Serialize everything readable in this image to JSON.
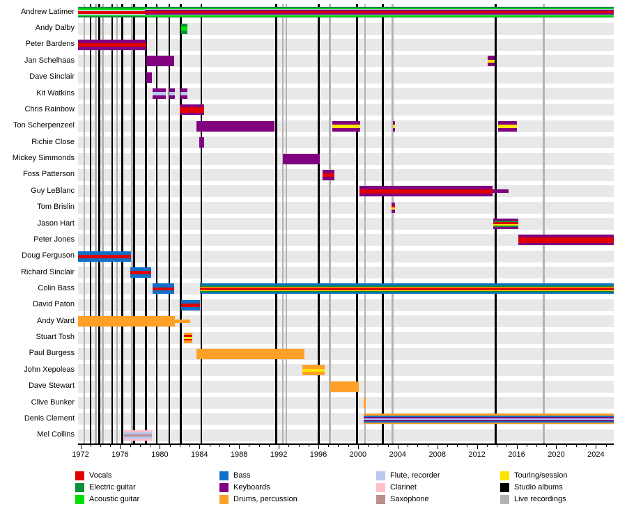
{
  "chart_data": {
    "type": "timeline",
    "x_axis": {
      "domain": [
        1971.75,
        2025.8
      ],
      "tick_start": 1972,
      "tick_end": 2025,
      "label_start": 1972,
      "label_end": 2024,
      "label_interval": 4,
      "tick_labels": [
        "1972",
        "1976",
        "1980",
        "1984",
        "1988",
        "1992",
        "1996",
        "2000",
        "2004",
        "2008",
        "2012",
        "2016",
        "2020",
        "2024"
      ]
    },
    "colors": {
      "vocals": "#e00000",
      "electric_guitar": "#0a8f3c",
      "acoustic_guitar": "#00e000",
      "bass": "#1070c8",
      "keyboards": "#800080",
      "drums": "#ffa028",
      "flute": "#b8c8f0",
      "clarinet": "#ffc0cb",
      "saxophone": "#bc8f8f",
      "touring": "#ffe400",
      "studio": "#000000",
      "live": "#b3b3b3",
      "row_band": "#e8e8e8"
    },
    "legend": [
      {
        "label": "Vocals",
        "key": "vocals"
      },
      {
        "label": "Electric guitar",
        "key": "electric_guitar"
      },
      {
        "label": "Acoustic guitar",
        "key": "acoustic_guitar"
      },
      {
        "label": "Bass",
        "key": "bass"
      },
      {
        "label": "Keyboards",
        "key": "keyboards"
      },
      {
        "label": "Drums, percussion",
        "key": "drums"
      },
      {
        "label": "Flute, recorder",
        "key": "flute"
      },
      {
        "label": "Clarinet",
        "key": "clarinet"
      },
      {
        "label": "Saxophone",
        "key": "saxophone"
      },
      {
        "label": "Touring/session",
        "key": "touring"
      },
      {
        "label": "Studio albums",
        "key": "studio"
      },
      {
        "label": "Live recordings",
        "key": "live"
      }
    ],
    "albums": {
      "studio": [
        1973.0,
        1973.9,
        1975.2,
        1976.2,
        1977.4,
        1978.6,
        1979.7,
        1980.95,
        1982.1,
        1984.2,
        1991.75,
        1996.05,
        1999.9,
        2002.5,
        2013.9
      ],
      "live": [
        1972.4,
        1973.55,
        1974.25,
        1975.7,
        1977.2,
        1992.4,
        1992.75,
        1997.15,
        2000.7,
        2003.5,
        2018.75
      ]
    },
    "members": [
      {
        "name": "Andrew Latimer",
        "bars": [
          {
            "start": 1971.75,
            "end": 1978.5,
            "stripes": [
              [
                "electric_guitar",
                1
              ],
              [
                "acoustic_guitar",
                1
              ],
              [
                "flute",
                1
              ],
              [
                "vocals",
                2.4
              ],
              [
                "flute",
                1
              ],
              [
                "acoustic_guitar",
                1
              ],
              [
                "electric_guitar",
                1
              ]
            ]
          },
          {
            "start": 1978.5,
            "end": 2025.8,
            "stripes": [
              [
                "electric_guitar",
                1
              ],
              [
                "acoustic_guitar",
                1
              ],
              [
                "flute",
                0.9
              ],
              [
                "keyboards",
                1
              ],
              [
                "vocals",
                2.4
              ],
              [
                "keyboards",
                1
              ],
              [
                "flute",
                0.9
              ],
              [
                "acoustic_guitar",
                1
              ],
              [
                "electric_guitar",
                1
              ]
            ]
          }
        ]
      },
      {
        "name": "Andy Dalby",
        "bars": [
          {
            "start": 1982.15,
            "end": 1982.8,
            "stripes": [
              [
                "electric_guitar",
                1
              ],
              [
                "acoustic_guitar",
                1.1
              ],
              [
                "electric_guitar",
                1
              ]
            ]
          }
        ]
      },
      {
        "name": "Peter Bardens",
        "bars": [
          {
            "start": 1971.75,
            "end": 1978.65,
            "stripes": [
              [
                "keyboards",
                1
              ],
              [
                "vocals",
                1
              ],
              [
                "keyboards",
                1
              ]
            ]
          }
        ]
      },
      {
        "name": "Jan Schelhaas",
        "bars": [
          {
            "start": 1978.65,
            "end": 1981.45,
            "stripes": [
              [
                "keyboards",
                1
              ]
            ]
          },
          {
            "start": 2013.05,
            "end": 2013.75,
            "stripes": [
              [
                "keyboards",
                1
              ],
              [
                "touring",
                0.8
              ],
              [
                "keyboards",
                1
              ]
            ]
          }
        ]
      },
      {
        "name": "Dave Sinclair",
        "bars": [
          {
            "start": 1978.65,
            "end": 1979.2,
            "stripes": [
              [
                "keyboards",
                1
              ]
            ]
          }
        ]
      },
      {
        "name": "Kit Watkins",
        "bars": [
          {
            "start": 1979.3,
            "end": 1980.6,
            "stripes": [
              [
                "keyboards",
                1
              ],
              [
                "flute",
                0.9
              ],
              [
                "keyboards",
                1
              ]
            ]
          },
          {
            "start": 1980.95,
            "end": 1981.5,
            "stripes": [
              [
                "keyboards",
                1
              ],
              [
                "flute",
                0.9
              ],
              [
                "keyboards",
                1
              ]
            ]
          },
          {
            "start": 1982.05,
            "end": 1982.8,
            "stripes": [
              [
                "keyboards",
                1
              ],
              [
                "flute",
                0.9
              ],
              [
                "keyboards",
                1
              ]
            ]
          }
        ]
      },
      {
        "name": "Chris Rainbow",
        "bars": [
          {
            "start": 1982.0,
            "end": 1984.5,
            "stripes": [
              [
                "keyboards",
                0.9
              ],
              [
                "vocals",
                1.8
              ],
              [
                "keyboards",
                0.9
              ]
            ]
          }
        ]
      },
      {
        "name": "Ton Scherpenzeel",
        "bars": [
          {
            "start": 1983.7,
            "end": 1991.55,
            "stripes": [
              [
                "keyboards",
                1
              ]
            ]
          },
          {
            "start": 1997.4,
            "end": 2000.2,
            "stripes": [
              [
                "keyboards",
                1
              ],
              [
                "touring",
                0.9
              ],
              [
                "keyboards",
                1
              ]
            ]
          },
          {
            "start": 2003.5,
            "end": 2003.7,
            "stripes": [
              [
                "keyboards",
                1
              ],
              [
                "touring",
                0.9
              ],
              [
                "keyboards",
                1
              ]
            ]
          },
          {
            "start": 2014.15,
            "end": 2016.0,
            "stripes": [
              [
                "keyboards",
                1
              ],
              [
                "touring",
                0.9
              ],
              [
                "keyboards",
                1
              ]
            ]
          }
        ]
      },
      {
        "name": "Richie Close",
        "bars": [
          {
            "start": 1984.0,
            "end": 1984.45,
            "stripes": [
              [
                "keyboards",
                1
              ]
            ]
          }
        ]
      },
      {
        "name": "Mickey Simmonds",
        "bars": [
          {
            "start": 1992.4,
            "end": 1996.15,
            "stripes": [
              [
                "keyboards",
                1
              ]
            ]
          }
        ]
      },
      {
        "name": "Foss Patterson",
        "bars": [
          {
            "start": 1996.45,
            "end": 1997.6,
            "stripes": [
              [
                "keyboards",
                1
              ],
              [
                "vocals",
                1
              ],
              [
                "keyboards",
                1
              ]
            ]
          }
        ]
      },
      {
        "name": "Guy LeBlanc",
        "bars": [
          {
            "start": 2000.15,
            "end": 2013.6,
            "stripes": [
              [
                "keyboards",
                1
              ],
              [
                "vocals",
                1.2
              ],
              [
                "keyboards",
                1
              ]
            ]
          },
          {
            "start": 2013.6,
            "end": 2015.2,
            "thin": true,
            "stripes": [
              [
                "keyboards",
                1
              ]
            ]
          }
        ]
      },
      {
        "name": "Tom Brislin",
        "bars": [
          {
            "start": 2003.4,
            "end": 2003.7,
            "stripes": [
              [
                "keyboards",
                1
              ],
              [
                "vocals",
                0.8
              ],
              [
                "touring",
                0.8
              ],
              [
                "keyboards",
                1
              ]
            ]
          }
        ]
      },
      {
        "name": "Jason Hart",
        "bars": [
          {
            "start": 2013.65,
            "end": 2016.15,
            "stripes": [
              [
                "keyboards",
                1
              ],
              [
                "electric_guitar",
                0.8
              ],
              [
                "vocals",
                1
              ],
              [
                "touring",
                0.8
              ],
              [
                "electric_guitar",
                0.8
              ],
              [
                "keyboards",
                1
              ]
            ]
          }
        ]
      },
      {
        "name": "Peter Jones",
        "bars": [
          {
            "start": 2016.15,
            "end": 2025.8,
            "stripes": [
              [
                "keyboards",
                1
              ],
              [
                "vocals",
                2
              ],
              [
                "keyboards",
                1
              ]
            ]
          }
        ]
      },
      {
        "name": "Doug Ferguson",
        "bars": [
          {
            "start": 1971.75,
            "end": 1977.1,
            "stripes": [
              [
                "bass",
                1
              ],
              [
                "vocals",
                0.9
              ],
              [
                "bass",
                1
              ]
            ]
          }
        ]
      },
      {
        "name": "Richard Sinclair",
        "bars": [
          {
            "start": 1977.05,
            "end": 1979.15,
            "stripes": [
              [
                "bass",
                1
              ],
              [
                "vocals",
                0.9
              ],
              [
                "bass",
                1
              ]
            ]
          }
        ]
      },
      {
        "name": "Colin Bass",
        "bars": [
          {
            "start": 1979.3,
            "end": 1981.45,
            "stripes": [
              [
                "bass",
                1
              ],
              [
                "vocals",
                0.9
              ],
              [
                "bass",
                1
              ]
            ]
          },
          {
            "start": 1984.05,
            "end": 2025.8,
            "stripes": [
              [
                "bass",
                1
              ],
              [
                "electric_guitar",
                0.8
              ],
              [
                "touring",
                0.5
              ],
              [
                "vocals",
                1.4
              ],
              [
                "touring",
                0.5
              ],
              [
                "electric_guitar",
                0.8
              ],
              [
                "bass",
                1
              ]
            ]
          }
        ]
      },
      {
        "name": "David Paton",
        "bars": [
          {
            "start": 1982.15,
            "end": 1984.05,
            "stripes": [
              [
                "bass",
                1
              ],
              [
                "vocals",
                0.9
              ],
              [
                "bass",
                1
              ]
            ]
          }
        ]
      },
      {
        "name": "Andy Ward",
        "bars": [
          {
            "start": 1971.75,
            "end": 1981.5,
            "stripes": [
              [
                "drums",
                1
              ]
            ]
          },
          {
            "start": 1981.5,
            "end": 1983.1,
            "thin": true,
            "stripes": [
              [
                "drums",
                1
              ]
            ]
          }
        ]
      },
      {
        "name": "Stuart Tosh",
        "bars": [
          {
            "start": 1982.45,
            "end": 1983.25,
            "stripes": [
              [
                "drums",
                1
              ],
              [
                "vocals",
                0.7
              ],
              [
                "touring",
                0.9
              ],
              [
                "vocals",
                0.7
              ],
              [
                "drums",
                1
              ]
            ]
          }
        ]
      },
      {
        "name": "Paul Burgess",
        "bars": [
          {
            "start": 1983.7,
            "end": 1994.6,
            "stripes": [
              [
                "drums",
                1
              ]
            ]
          }
        ]
      },
      {
        "name": "John Xepoleas",
        "bars": [
          {
            "start": 1994.35,
            "end": 1996.65,
            "stripes": [
              [
                "drums",
                1
              ],
              [
                "touring",
                0.9
              ],
              [
                "drums",
                1
              ]
            ]
          }
        ]
      },
      {
        "name": "Dave Stewart",
        "bars": [
          {
            "start": 1997.2,
            "end": 2000.05,
            "stripes": [
              [
                "drums",
                1
              ]
            ]
          }
        ]
      },
      {
        "name": "Clive Bunker",
        "bars": [
          {
            "start": 2000.55,
            "end": 2000.8,
            "stripes": [
              [
                "drums",
                1
              ]
            ]
          }
        ]
      },
      {
        "name": "Denis Clement",
        "bars": [
          {
            "start": 2000.6,
            "end": 2025.8,
            "stripes": [
              [
                "drums",
                0.9
              ],
              [
                "bass",
                0.9
              ],
              [
                "keyboards",
                1.1
              ],
              [
                "flute",
                0.6
              ],
              [
                "keyboards",
                1.1
              ],
              [
                "bass",
                0.9
              ],
              [
                "drums",
                0.9
              ]
            ]
          }
        ]
      },
      {
        "name": "Mel Collins",
        "bars": [
          {
            "start": 1976.4,
            "end": 1979.2,
            "stripes": [
              [
                "clarinet",
                1
              ],
              [
                "flute",
                1
              ],
              [
                "saxophone",
                1.2
              ],
              [
                "flute",
                1
              ],
              [
                "clarinet",
                1
              ]
            ]
          }
        ]
      }
    ]
  }
}
